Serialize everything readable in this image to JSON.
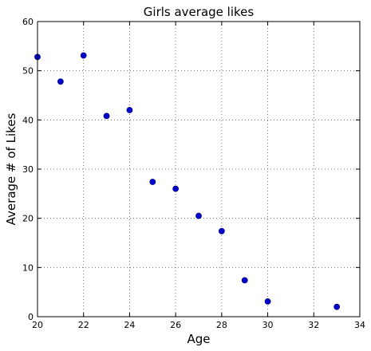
{
  "chart_data": {
    "type": "scatter",
    "title": "Girls average likes",
    "xlabel": "Age",
    "ylabel": "Average # of Likes",
    "xlim": [
      20,
      34
    ],
    "ylim": [
      0,
      60
    ],
    "xticks": [
      20,
      22,
      24,
      26,
      28,
      30,
      32,
      34
    ],
    "yticks": [
      0,
      10,
      20,
      30,
      40,
      50,
      60
    ],
    "grid": true,
    "marker_color": "#0000cc",
    "series": [
      {
        "x": [
          20,
          21,
          22,
          23,
          24,
          25,
          26,
          27,
          28,
          29,
          30,
          33
        ],
        "y": [
          52.8,
          47.8,
          53.1,
          40.8,
          42.0,
          27.4,
          26.0,
          20.5,
          17.4,
          7.4,
          3.1,
          2.0
        ]
      }
    ]
  }
}
